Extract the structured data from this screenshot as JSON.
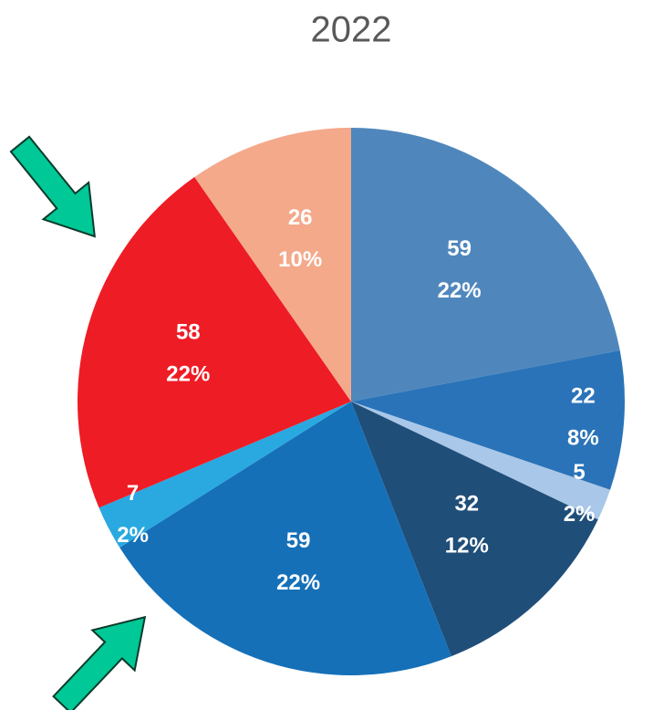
{
  "chart_data": {
    "type": "pie",
    "title": "2022",
    "values": [
      59,
      22,
      5,
      32,
      59,
      7,
      58,
      26
    ],
    "percent_labels": [
      "22%",
      "8%",
      "2%",
      "12%",
      "22%",
      "2%",
      "22%",
      "10%"
    ],
    "colors": [
      "#4f87bd",
      "#2a73b8",
      "#a9c7e8",
      "#1f4e79",
      "#1570b8",
      "#29a9e0",
      "#ee1c25",
      "#f4a98b"
    ]
  }
}
